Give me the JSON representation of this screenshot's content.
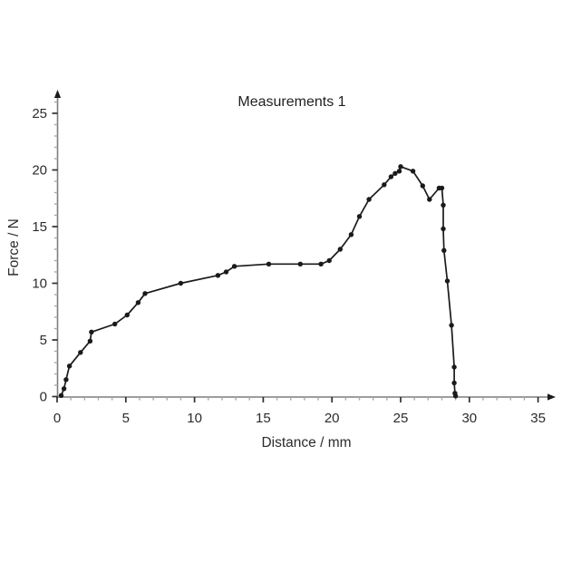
{
  "chart_data": {
    "type": "line",
    "title": "Measurements 1",
    "xlabel": "Distance / mm",
    "ylabel": "Force / N",
    "xlim": [
      0,
      36.5
    ],
    "ylim": [
      0,
      26.8
    ],
    "x_major_ticks": [
      0,
      5,
      10,
      15,
      20,
      25,
      30,
      35
    ],
    "y_major_ticks": [
      0,
      5,
      10,
      15,
      20,
      25
    ],
    "minor_tick_step": 1,
    "x_minor_max": 34,
    "y_minor_max": 26,
    "grid": false,
    "legend": "none",
    "marker": "dot",
    "series": [
      {
        "name": "Measurements 1",
        "points": [
          [
            0.3,
            0.1
          ],
          [
            0.5,
            0.7
          ],
          [
            0.65,
            1.5
          ],
          [
            0.9,
            2.7
          ],
          [
            1.7,
            3.9
          ],
          [
            2.4,
            4.9
          ],
          [
            2.5,
            5.7
          ],
          [
            4.2,
            6.4
          ],
          [
            5.1,
            7.2
          ],
          [
            5.9,
            8.3
          ],
          [
            6.4,
            9.1
          ],
          [
            9.0,
            10.0
          ],
          [
            11.7,
            10.7
          ],
          [
            12.3,
            11.0
          ],
          [
            12.9,
            11.5
          ],
          [
            15.4,
            11.7
          ],
          [
            17.7,
            11.7
          ],
          [
            19.2,
            11.7
          ],
          [
            19.8,
            12.0
          ],
          [
            20.6,
            13.0
          ],
          [
            21.4,
            14.3
          ],
          [
            22.0,
            15.9
          ],
          [
            22.7,
            17.4
          ],
          [
            23.8,
            18.7
          ],
          [
            24.3,
            19.4
          ],
          [
            24.6,
            19.7
          ],
          [
            24.9,
            19.9
          ],
          [
            25.0,
            20.3
          ],
          [
            25.9,
            19.9
          ],
          [
            26.6,
            18.6
          ],
          [
            27.1,
            17.4
          ],
          [
            27.8,
            18.4
          ],
          [
            28.0,
            18.4
          ],
          [
            28.1,
            16.9
          ],
          [
            28.1,
            14.8
          ],
          [
            28.15,
            12.9
          ],
          [
            28.4,
            10.2
          ],
          [
            28.7,
            6.3
          ],
          [
            28.9,
            2.6
          ],
          [
            28.9,
            1.2
          ],
          [
            28.95,
            0.3
          ],
          [
            29.0,
            0.05
          ]
        ]
      }
    ],
    "colors": {
      "background": "#ffffff",
      "line": "#1a1a1a",
      "marker": "#1a1a1a",
      "axis": "#7d7d7d",
      "major_tick": "#2e2e2e",
      "minor_tick": "#a8a8a8",
      "text": "#2b2b2b"
    }
  }
}
